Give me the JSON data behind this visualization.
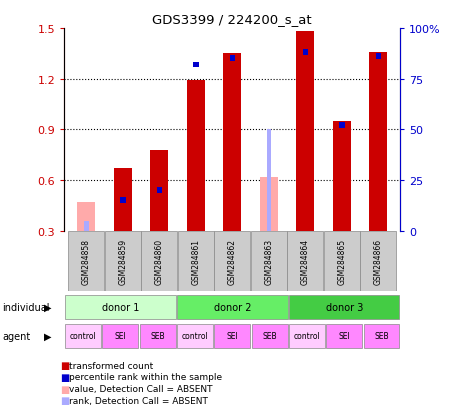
{
  "title": "GDS3399 / 224200_s_at",
  "samples": [
    "GSM284858",
    "GSM284859",
    "GSM284860",
    "GSM284861",
    "GSM284862",
    "GSM284863",
    "GSM284864",
    "GSM284865",
    "GSM284866"
  ],
  "transformed_count": [
    0.0,
    0.67,
    0.78,
    1.19,
    1.35,
    0.0,
    1.48,
    0.95,
    1.36
  ],
  "absent_value": [
    0.47,
    0.0,
    0.0,
    0.0,
    0.0,
    0.62,
    0.0,
    0.0,
    0.0
  ],
  "percentile_pct": [
    5.0,
    15.0,
    20.0,
    82.0,
    85.0,
    50.0,
    88.0,
    52.0,
    86.0
  ],
  "absent_flag": [
    true,
    false,
    false,
    false,
    false,
    true,
    false,
    false,
    false
  ],
  "ylim": [
    0.3,
    1.5
  ],
  "y2lim": [
    0.0,
    100.0
  ],
  "yticks": [
    0.3,
    0.6,
    0.9,
    1.2,
    1.5
  ],
  "y2ticks": [
    0,
    25,
    50,
    75,
    100
  ],
  "bar_color_red": "#cc0000",
  "bar_color_absent": "#ffaaaa",
  "rank_color": "#0000cc",
  "rank_color_absent": "#aaaaff",
  "donors": [
    {
      "label": "donor 1",
      "cols": [
        0,
        1,
        2
      ],
      "color": "#ccffcc"
    },
    {
      "label": "donor 2",
      "cols": [
        3,
        4,
        5
      ],
      "color": "#66ee66"
    },
    {
      "label": "donor 3",
      "cols": [
        6,
        7,
        8
      ],
      "color": "#44cc44"
    }
  ],
  "agents": [
    "control",
    "SEI",
    "SEB",
    "control",
    "SEI",
    "SEB",
    "control",
    "SEI",
    "SEB"
  ],
  "label_individual": "individual",
  "label_agent": "agent",
  "legend_items": [
    {
      "label": "transformed count",
      "color": "#cc0000"
    },
    {
      "label": "percentile rank within the sample",
      "color": "#0000cc"
    },
    {
      "label": "value, Detection Call = ABSENT",
      "color": "#ffaaaa"
    },
    {
      "label": "rank, Detection Call = ABSENT",
      "color": "#aaaaff"
    }
  ],
  "bg_color": "#ffffff",
  "bar_width": 0.5
}
